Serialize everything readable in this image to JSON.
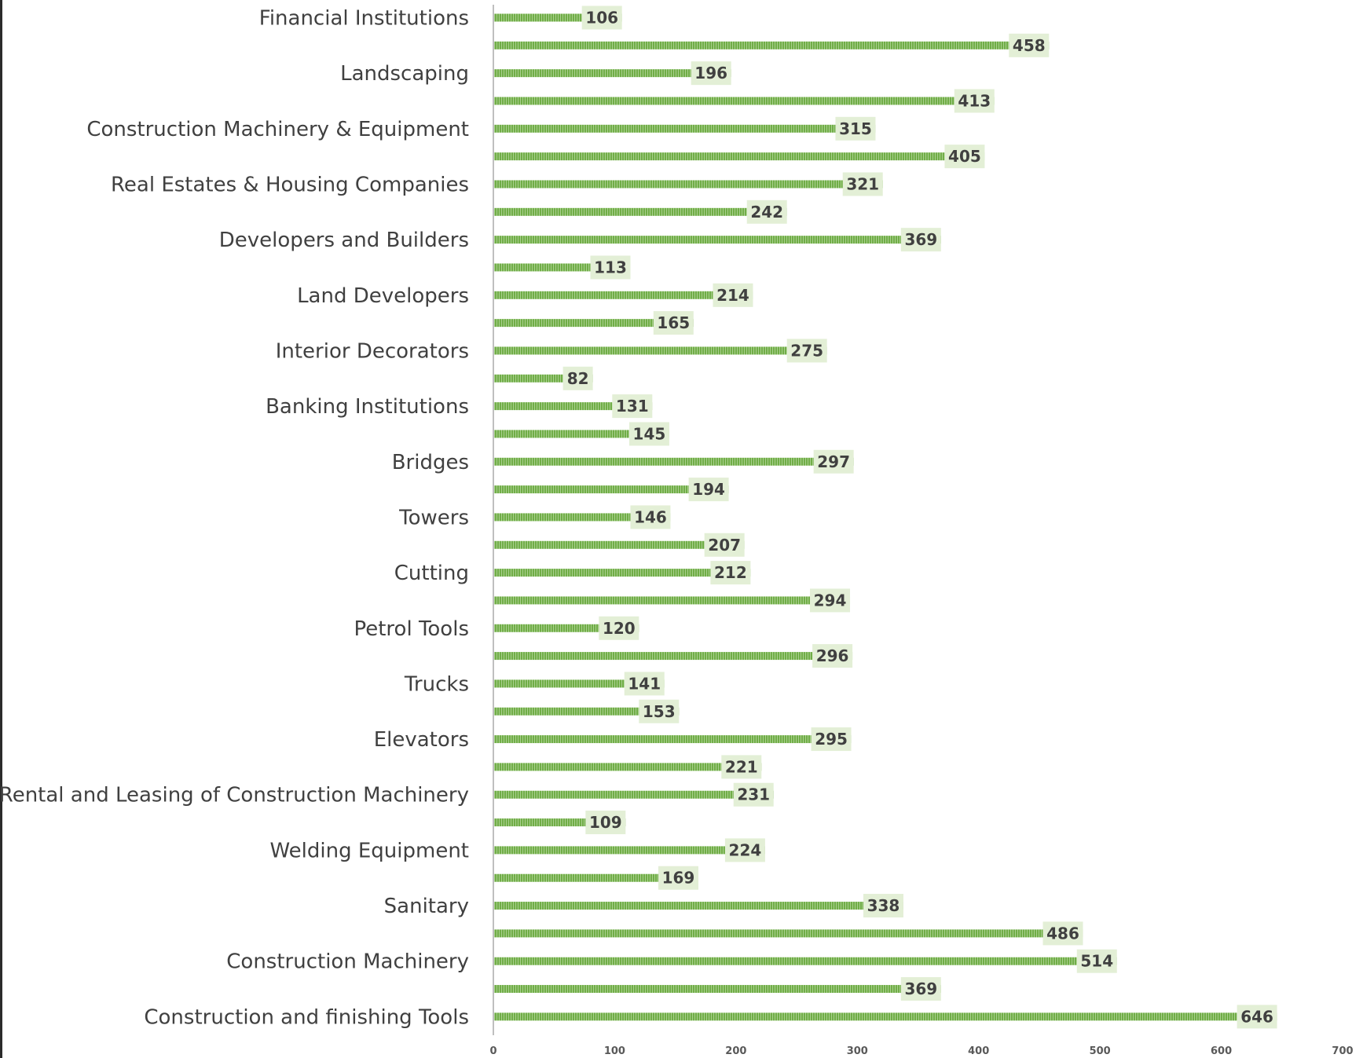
{
  "chart_data": {
    "type": "bar",
    "orientation": "horizontal",
    "title": "",
    "xlabel": "",
    "ylabel": "",
    "xlim": [
      0,
      700
    ],
    "x_ticks": [
      "0",
      "100",
      "200",
      "300",
      "400",
      "500",
      "600",
      "700"
    ],
    "grid": false,
    "legend": "none",
    "bar_color": "#70ad47",
    "label_bg_color": "#e3efd6",
    "categories": [
      {
        "label": "Financial Institutions",
        "value": 106
      },
      {
        "label": "",
        "value": 458
      },
      {
        "label": "Landscaping",
        "value": 196
      },
      {
        "label": "",
        "value": 413
      },
      {
        "label": "Construction Machinery & Equipment",
        "value": 315
      },
      {
        "label": "",
        "value": 405
      },
      {
        "label": "Real Estates & Housing Companies",
        "value": 321
      },
      {
        "label": "",
        "value": 242
      },
      {
        "label": "Developers and Builders",
        "value": 369
      },
      {
        "label": "",
        "value": 113
      },
      {
        "label": "Land Developers",
        "value": 214
      },
      {
        "label": "",
        "value": 165
      },
      {
        "label": "Interior Decorators",
        "value": 275
      },
      {
        "label": "",
        "value": 82
      },
      {
        "label": "Banking Institutions",
        "value": 131
      },
      {
        "label": "",
        "value": 145
      },
      {
        "label": "Bridges",
        "value": 297
      },
      {
        "label": "",
        "value": 194
      },
      {
        "label": "Towers",
        "value": 146
      },
      {
        "label": "",
        "value": 207
      },
      {
        "label": "Cutting",
        "value": 212
      },
      {
        "label": "",
        "value": 294
      },
      {
        "label": "Petrol Tools",
        "value": 120
      },
      {
        "label": "",
        "value": 296
      },
      {
        "label": "Trucks",
        "value": 141
      },
      {
        "label": "",
        "value": 153
      },
      {
        "label": "Elevators",
        "value": 295
      },
      {
        "label": "",
        "value": 221
      },
      {
        "label": "Rental and Leasing of Construction Machinery",
        "value": 231
      },
      {
        "label": "",
        "value": 109
      },
      {
        "label": "Welding Equipment",
        "value": 224
      },
      {
        "label": "",
        "value": 169
      },
      {
        "label": "Sanitary",
        "value": 338
      },
      {
        "label": "",
        "value": 486
      },
      {
        "label": "Construction Machinery",
        "value": 514
      },
      {
        "label": "",
        "value": 369
      },
      {
        "label": "Construction and finishing Tools",
        "value": 646
      }
    ]
  }
}
